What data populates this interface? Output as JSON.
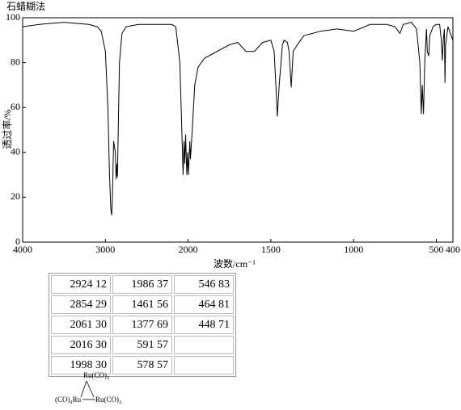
{
  "chart_data": {
    "type": "line",
    "title": "石蜡糊法",
    "x_label": "波数/cm⁻¹",
    "y_label": "透过率/%",
    "xlim": [
      4000,
      400
    ],
    "x_scale_change": 2000,
    "ylim": [
      0,
      100
    ],
    "xticks": [
      4000,
      3000,
      2000,
      1500,
      1000,
      500,
      400
    ],
    "yticks": [
      0,
      20,
      40,
      60,
      80,
      100
    ],
    "color": "#000000",
    "x": [
      4000,
      3800,
      3500,
      3200,
      3100,
      3050,
      3000,
      2970,
      2950,
      2935,
      2924,
      2915,
      2900,
      2880,
      2870,
      2860,
      2854,
      2845,
      2830,
      2800,
      2750,
      2600,
      2400,
      2200,
      2150,
      2100,
      2080,
      2061,
      2050,
      2040,
      2030,
      2016,
      2005,
      1998,
      1990,
      1986,
      1975,
      1960,
      1940,
      1900,
      1850,
      1800,
      1750,
      1700,
      1650,
      1600,
      1550,
      1500,
      1480,
      1470,
      1461,
      1450,
      1430,
      1420,
      1400,
      1390,
      1377,
      1365,
      1340,
      1300,
      1200,
      1100,
      1000,
      900,
      800,
      750,
      720,
      700,
      650,
      620,
      600,
      591,
      585,
      578,
      570,
      560,
      555,
      546,
      540,
      520,
      500,
      480,
      470,
      464,
      458,
      452,
      448,
      444,
      430,
      415,
      400
    ],
    "values": [
      96,
      97,
      98,
      97,
      96,
      94,
      85,
      60,
      30,
      15,
      12,
      20,
      45,
      40,
      28,
      35,
      29,
      50,
      80,
      93,
      96,
      97,
      97,
      97,
      96,
      80,
      55,
      30,
      45,
      35,
      48,
      30,
      40,
      30,
      45,
      37,
      50,
      70,
      78,
      82,
      84,
      86,
      88,
      89,
      85,
      85,
      89,
      90,
      85,
      70,
      56,
      70,
      88,
      90,
      89,
      85,
      69,
      85,
      88,
      92,
      94,
      95,
      94,
      97,
      97,
      96,
      93,
      97,
      98,
      95,
      80,
      57,
      70,
      57,
      80,
      95,
      85,
      83,
      92,
      96,
      97,
      97,
      90,
      81,
      90,
      95,
      71,
      88,
      96,
      93,
      90
    ]
  },
  "peak_table": {
    "rows": [
      [
        "2924 12",
        "1986 37",
        "546 83"
      ],
      [
        "2854 29",
        "1461 56",
        "464 81"
      ],
      [
        "2061 30",
        "1377 69",
        "448 71"
      ],
      [
        "2016 30",
        "591 57",
        ""
      ],
      [
        "1998 30",
        "578 57",
        ""
      ]
    ]
  },
  "structure": {
    "top": "Ru(CO)₄",
    "left": "(CO)₄Ru",
    "right": "Ru(CO)₄"
  }
}
